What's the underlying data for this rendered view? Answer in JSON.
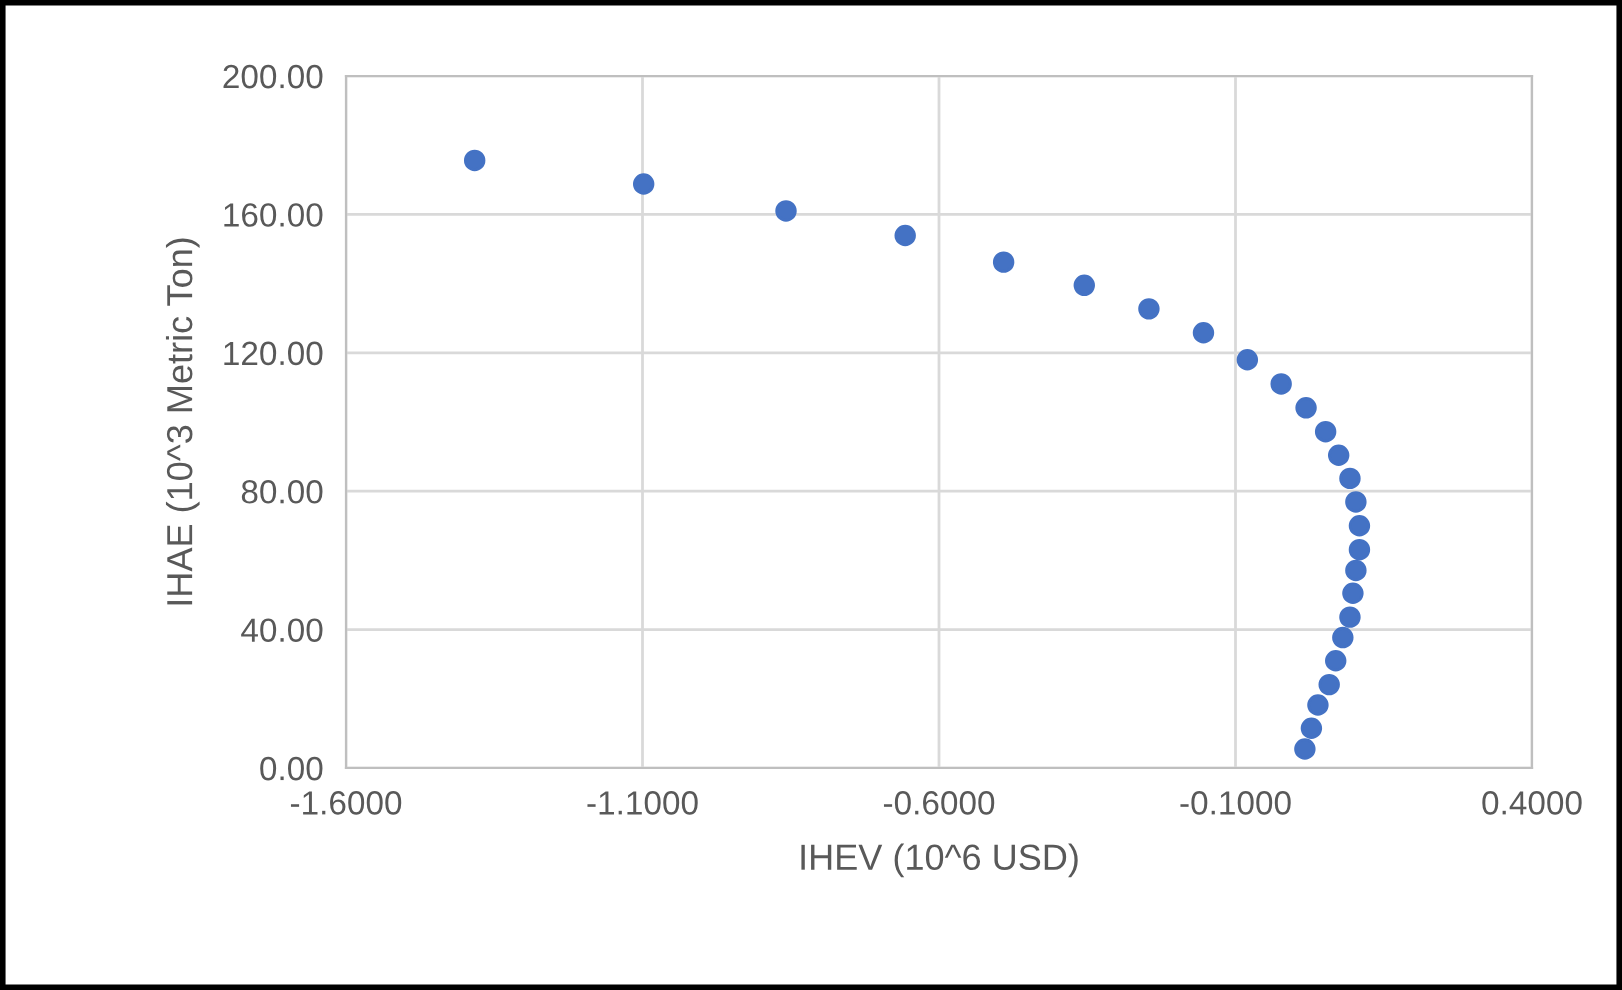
{
  "chart_data": {
    "type": "scatter",
    "xlabel": "IHEV (10^6 USD)",
    "ylabel": "IHAE (10^3 Metric Ton)",
    "x": [
      -1.383,
      -1.098,
      -0.858,
      -0.657,
      -0.491,
      -0.355,
      -0.246,
      -0.154,
      -0.08,
      -0.023,
      0.019,
      0.052,
      0.074,
      0.093,
      0.103,
      0.109,
      0.109,
      0.103,
      0.098,
      0.093,
      0.081,
      0.069,
      0.058,
      0.039,
      0.028,
      0.017
    ],
    "values": [
      175.6,
      168.8,
      161.0,
      153.9,
      146.2,
      139.5,
      132.7,
      125.8,
      118.0,
      111.0,
      104.1,
      97.2,
      90.4,
      83.7,
      76.9,
      70.0,
      63.1,
      57.1,
      50.5,
      43.6,
      37.7,
      31.0,
      24.1,
      18.2,
      11.5,
      5.5
    ],
    "color": "#4472c4",
    "marker": "circle",
    "xlim": [
      -1.6,
      0.4
    ],
    "xticks": [
      {
        "value": -1.6,
        "label": "-1.6000"
      },
      {
        "value": -1.1,
        "label": "-1.1000"
      },
      {
        "value": -0.6,
        "label": "-0.6000"
      },
      {
        "value": -0.1,
        "label": "-0.1000"
      },
      {
        "value": 0.4,
        "label": "0.4000"
      }
    ],
    "ylim": [
      0,
      200
    ],
    "yticks": [
      {
        "value": 0,
        "label": "0.00"
      },
      {
        "value": 40,
        "label": "40.00"
      },
      {
        "value": 80,
        "label": "80.00"
      },
      {
        "value": 120,
        "label": "120.00"
      },
      {
        "value": 160,
        "label": "160.00"
      },
      {
        "value": 200,
        "label": "200.00"
      }
    ],
    "grid": true
  }
}
